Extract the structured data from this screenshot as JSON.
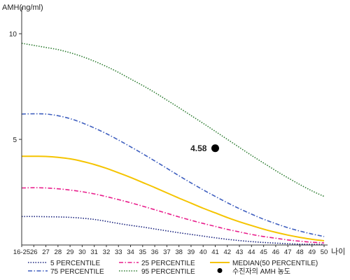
{
  "chart_data": {
    "type": "line",
    "ylabel": "AMH(ng/ml)",
    "xlabel": "나이",
    "ylim": [
      0,
      11
    ],
    "y_ticks": [
      5,
      10
    ],
    "x_ticks": [
      "16-25",
      "26",
      "27",
      "28",
      "29",
      "30",
      "31",
      "32",
      "33",
      "34",
      "35",
      "36",
      "37",
      "38",
      "39",
      "40",
      "41",
      "42",
      "43",
      "44",
      "45",
      "46",
      "47",
      "48",
      "49",
      "50"
    ],
    "grid": false,
    "legend_position": "bottom",
    "series": [
      {
        "name": "5 PERCENTILE",
        "color": "#1a237e",
        "style": "dotted",
        "values": [
          1.35,
          1.35,
          1.34,
          1.33,
          1.31,
          1.27,
          1.21,
          1.12,
          1.02,
          0.93,
          0.85,
          0.76,
          0.67,
          0.58,
          0.5,
          0.42,
          0.34,
          0.27,
          0.21,
          0.16,
          0.12,
          0.09,
          0.06,
          0.04,
          0.03,
          0.02
        ]
      },
      {
        "name": "25 PERCENTILE",
        "color": "#e91e8c",
        "style": "dashdot",
        "values": [
          2.7,
          2.71,
          2.7,
          2.66,
          2.6,
          2.52,
          2.42,
          2.29,
          2.15,
          2.0,
          1.84,
          1.67,
          1.5,
          1.33,
          1.17,
          1.02,
          0.88,
          0.74,
          0.62,
          0.5,
          0.4,
          0.32,
          0.24,
          0.18,
          0.13,
          0.1
        ]
      },
      {
        "name": "75 PERCENTILE",
        "color": "#3f5fbf",
        "style": "dashdot",
        "values": [
          6.2,
          6.21,
          6.2,
          6.12,
          5.98,
          5.78,
          5.54,
          5.27,
          4.97,
          4.65,
          4.32,
          3.98,
          3.63,
          3.28,
          2.94,
          2.61,
          2.3,
          2.0,
          1.72,
          1.46,
          1.22,
          1.01,
          0.82,
          0.66,
          0.52,
          0.4
        ]
      },
      {
        "name": "95 PERCENTILE",
        "color": "#2e7d32",
        "style": "dotted",
        "values": [
          9.55,
          9.45,
          9.35,
          9.25,
          9.1,
          8.92,
          8.7,
          8.45,
          8.17,
          7.86,
          7.55,
          7.22,
          6.86,
          6.5,
          6.13,
          5.76,
          5.38,
          5.0,
          4.62,
          4.24,
          3.88,
          3.52,
          3.18,
          2.86,
          2.56,
          2.3
        ]
      },
      {
        "name": "MEDIAN(50 PERCENTILE)",
        "color": "#f5c400",
        "style": "solid",
        "values": [
          4.2,
          4.2,
          4.19,
          4.15,
          4.08,
          3.96,
          3.81,
          3.63,
          3.42,
          3.2,
          2.96,
          2.72,
          2.47,
          2.22,
          1.98,
          1.74,
          1.52,
          1.3,
          1.1,
          0.92,
          0.75,
          0.6,
          0.47,
          0.36,
          0.27,
          0.2
        ]
      }
    ],
    "patient": {
      "name": "수진자의 AMH 농도",
      "x": "41",
      "y": 4.58,
      "label": "4.58",
      "color": "#000000"
    }
  }
}
